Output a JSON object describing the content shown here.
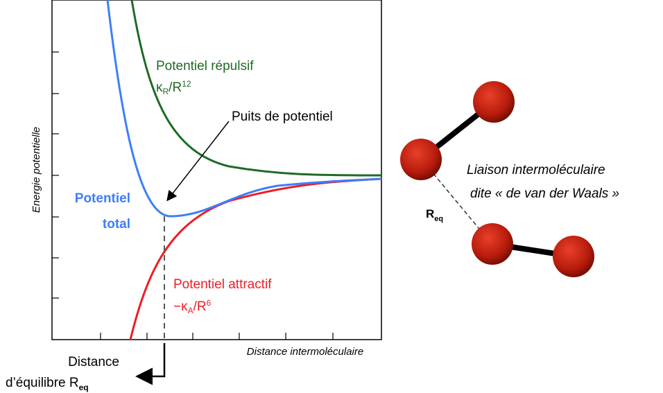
{
  "y_axis_label": "Energie potentielle",
  "x_axis_label": "Distance intermoléculaire",
  "repulsive": {
    "label": "Potentiel répulsif",
    "formula": {
      "kappa": "κ",
      "sub": "R",
      "rest": "/R",
      "sup": "12"
    }
  },
  "well_label": "Puits de potentiel",
  "total": {
    "line1": "Potentiel",
    "line2": "total"
  },
  "attractive": {
    "label": "Potentiel attractif",
    "formula": {
      "kappa": "−κ",
      "sub": "A",
      "rest": "/R",
      "sup": "6"
    }
  },
  "equilibrium": {
    "line1": "Distance",
    "line2": "d’équilibre R",
    "sub": "eq"
  },
  "molecule": {
    "line1": "Liaison intermoléculaire",
    "line2": "dite « de van der Waals »",
    "distance": "R",
    "distance_sub": "eq"
  }
}
